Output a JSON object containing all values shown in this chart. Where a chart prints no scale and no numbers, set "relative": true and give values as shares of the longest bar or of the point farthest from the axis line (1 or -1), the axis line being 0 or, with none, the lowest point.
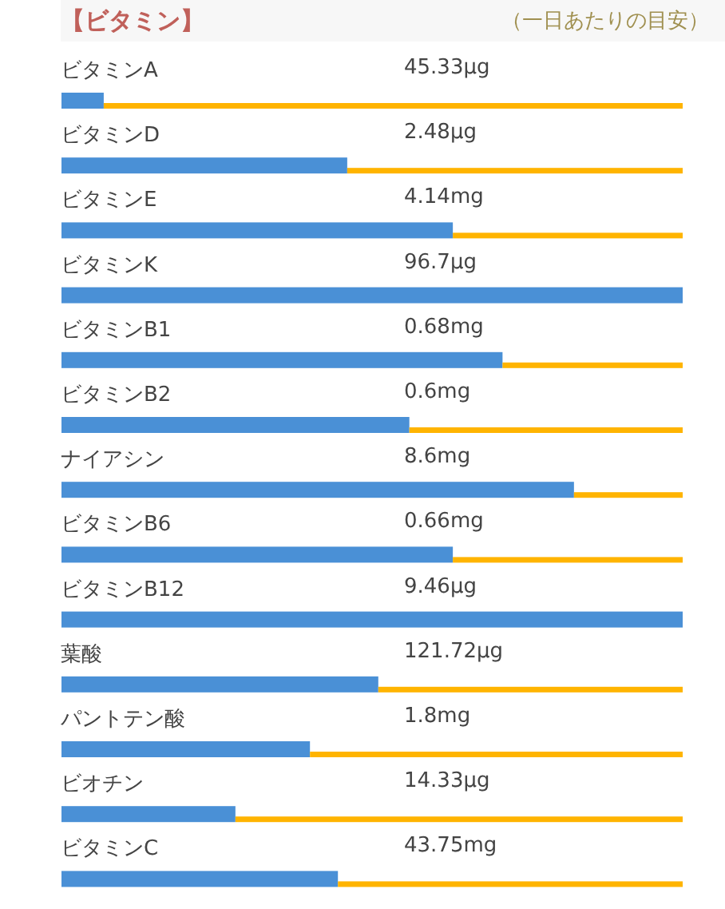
{
  "chart_data": {
    "type": "bar",
    "orientation": "horizontal",
    "relative": true,
    "title": "【ビタミン】",
    "subtitle": "（一日あたりの目安）",
    "categories": [
      "ビタミンA",
      "ビタミンD",
      "ビタミンE",
      "ビタミンK",
      "ビタミンB1",
      "ビタミンB2",
      "ナイアシン",
      "ビタミンB6",
      "ビタミンB12",
      "葉酸",
      "パントテン酸",
      "ビオチン",
      "ビタミンC"
    ],
    "stacked": true,
    "series": [
      {
        "color": "#4a90d6",
        "values": [
          0.068,
          0.46,
          0.63,
          1,
          0.71,
          0.56,
          0.825,
          0.63,
          1,
          0.51,
          0.4,
          0.28,
          0.445
        ]
      },
      {
        "color": "#ffb400",
        "values": [
          0.932,
          0.54,
          0.37,
          0,
          0.29,
          0.44,
          0.175,
          0.37,
          0,
          0.49,
          0.6,
          0.72,
          0.555
        ]
      }
    ],
    "value_labels": [
      "45.33μg",
      "2.48μg",
      "4.14mg",
      "96.7μg",
      "0.68mg",
      "0.6mg",
      "8.6mg",
      "0.66mg",
      "9.46μg",
      "121.72μg",
      "1.8mg",
      "14.33μg",
      "43.75mg"
    ]
  }
}
